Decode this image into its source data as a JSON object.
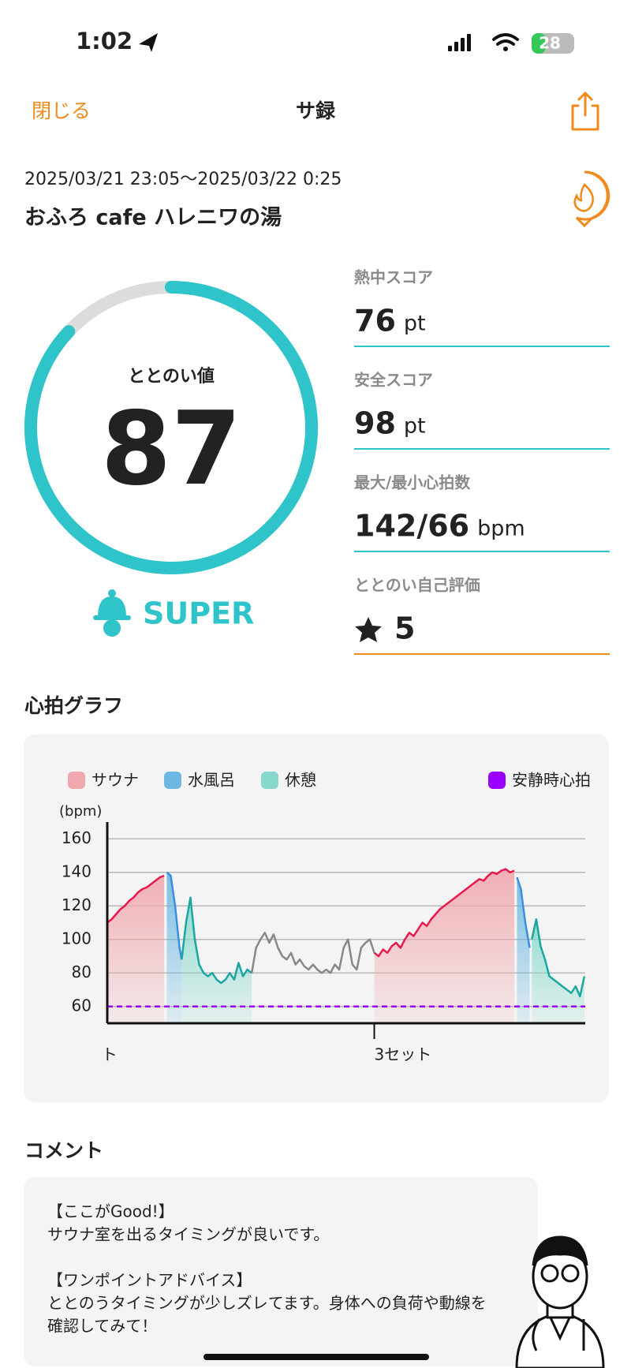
{
  "status": {
    "time": "1:02",
    "battery": "28"
  },
  "nav": {
    "close": "閉じる",
    "title": "サ録"
  },
  "session": {
    "datetime": "2025/03/21 23:05〜2025/03/22 0:25",
    "place": "おふろ cafe ハレニワの湯"
  },
  "score": {
    "label": "ととのい値",
    "value": 87,
    "scale": [
      0,
      100
    ],
    "color": "#2ec4c9",
    "rank": "SUPER"
  },
  "stats": [
    {
      "label": "熱中スコア",
      "value": 76,
      "unit": "pt"
    },
    {
      "label": "安全スコア",
      "value": 98,
      "unit": "pt"
    },
    {
      "label": "最大/最小心拍数",
      "value": "142/66",
      "unit": "bpm"
    },
    {
      "label": "ととのい自己評価",
      "value": 5
    }
  ],
  "graph_title": "心拍グラフ",
  "chart_data": {
    "type": "line",
    "y_label": "(bpm)",
    "xlim": [
      0,
      109.2
    ],
    "ylim": [
      50,
      170
    ],
    "yticks": [
      60,
      80,
      100,
      120,
      140,
      160
    ],
    "xticks": [
      {
        "value": 0.5,
        "label": "ト"
      },
      {
        "value": 61,
        "label": "3セット"
      }
    ],
    "grid": true,
    "series": [
      {
        "name": "サウナ",
        "color": "#f0a8ae",
        "line_color": "#e8194f",
        "segments": [
          {
            "x": [
              0,
              1,
              2,
              3,
              4,
              5,
              6,
              7,
              8,
              9,
              10,
              11,
              12,
              13
            ],
            "values": [
              110,
              112,
              115,
              118,
              120,
              123,
              125,
              128,
              130,
              131,
              133,
              135,
              137,
              138
            ]
          },
          {
            "x": [
              61,
              62,
              63,
              64,
              65,
              66,
              67,
              68,
              69,
              70,
              71,
              72,
              73,
              74,
              75,
              76,
              77,
              78,
              79,
              80,
              81,
              82,
              83,
              84,
              85,
              86,
              87,
              88,
              89,
              90,
              91,
              92,
              93
            ],
            "values": [
              92,
              90,
              94,
              92,
              96,
              98,
              95,
              100,
              104,
              102,
              106,
              110,
              108,
              112,
              115,
              118,
              120,
              122,
              124,
              126,
              128,
              130,
              132,
              134,
              136,
              135,
              138,
              140,
              139,
              141,
              142,
              140,
              141
            ]
          }
        ]
      },
      {
        "name": "水風呂",
        "color": "#6cb8e0",
        "line_color": "#3a8ee0",
        "segments": [
          {
            "x": [
              13.6,
              14.5,
              15.5,
              16.5,
              17
            ],
            "values": [
              140,
              138,
              120,
              95,
              88
            ]
          },
          {
            "x": [
              93.6,
              94.5,
              95.5,
              96.5
            ],
            "values": [
              137,
              130,
              110,
              95
            ]
          }
        ]
      },
      {
        "name": "休憩",
        "color": "#86d9cc",
        "line_color": "#1aa7a0",
        "segments": [
          {
            "x": [
              17,
              18,
              19,
              20,
              21,
              22,
              23,
              24,
              25,
              26,
              27,
              28,
              29,
              30,
              31,
              32,
              33
            ],
            "values": [
              88,
              110,
              125,
              100,
              85,
              80,
              78,
              80,
              76,
              74,
              76,
              80,
              76,
              86,
              78,
              82,
              80
            ]
          },
          {
            "x": [
              97,
              98,
              99,
              100,
              101,
              102,
              103,
              104,
              105,
              106,
              107,
              108,
              109
            ],
            "values": [
              100,
              112,
              96,
              88,
              78,
              76,
              74,
              72,
              70,
              68,
              72,
              66,
              78
            ]
          }
        ]
      }
    ],
    "other_line": {
      "color": "#888888",
      "segments": [
        {
          "x": [
            33,
            34,
            35,
            36,
            37,
            38,
            39,
            40,
            41,
            42,
            43,
            44,
            45,
            46,
            47,
            48,
            49,
            50,
            51,
            52,
            53,
            54,
            55,
            56,
            57,
            58,
            59,
            60,
            61
          ],
          "values": [
            80,
            95,
            100,
            104,
            98,
            103,
            95,
            90,
            88,
            92,
            85,
            88,
            84,
            82,
            85,
            82,
            80,
            82,
            80,
            85,
            82,
            95,
            100,
            85,
            82,
            95,
            98,
            100,
            92
          ]
        }
      ]
    },
    "resting_hr": {
      "name": "安静時心拍",
      "color": "#9b00ff",
      "value": 60
    }
  },
  "comment": {
    "title": "コメント",
    "sections": [
      {
        "heading": "【ここがGood!】",
        "body": "サウナ室を出るタイミングが良いです。"
      },
      {
        "heading": "【ワンポイントアドバイス】",
        "body": [
          "ととのうタイミングが少しズレてます。身体への負荷や動線を",
          "確認してみて！"
        ]
      }
    ]
  }
}
